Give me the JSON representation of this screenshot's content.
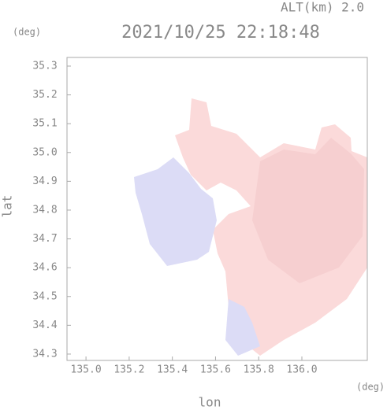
{
  "chart_data": {
    "type": "map",
    "title": "2021/10/25 22:18:48",
    "subtitle": "ALT(km) 2.0",
    "x_label": "lon",
    "y_label": "lat",
    "x_unit": "(deg)",
    "y_unit": "(deg)",
    "xlim": [
      134.912,
      136.303
    ],
    "ylim": [
      34.278,
      35.33
    ],
    "xticks": [
      {
        "value": 135,
        "label": "135.0"
      },
      135.2,
      135.4,
      135.6,
      135.8,
      {
        "value": 136,
        "label": "136.0"
      }
    ],
    "yticks": [
      34.3,
      34.4,
      34.5,
      34.6,
      34.7,
      34.8,
      34.9,
      {
        "value": 35,
        "label": "35.0"
      },
      35.1,
      35.2,
      35.3
    ]
  }
}
